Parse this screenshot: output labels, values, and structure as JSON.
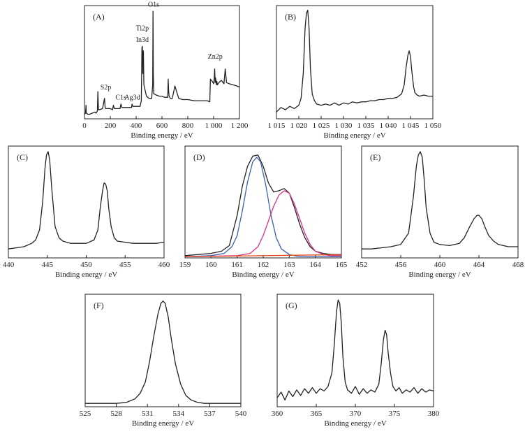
{
  "chart_data": [
    {
      "id": "A",
      "type": "line",
      "panel_label": "(A)",
      "xlabel": "Binding energy / eV",
      "ylabel": "",
      "xlim": [
        0,
        1200
      ],
      "xticks": [
        {
          "v": 0,
          "t": "0"
        },
        {
          "v": 200,
          "t": "200"
        },
        {
          "v": 400,
          "t": "400"
        },
        {
          "v": 600,
          "t": "600"
        },
        {
          "v": 800,
          "t": "800"
        },
        {
          "v": 1000,
          "t": "1 000"
        },
        {
          "v": 1200,
          "t": "1 200"
        }
      ],
      "ylim": [
        0,
        100
      ],
      "series": [
        {
          "x": [
            0,
            8,
            12,
            14,
            16,
            25,
            40,
            60,
            80,
            90,
            100,
            104,
            108,
            115,
            140,
            155,
            160,
            165,
            175,
            200,
            218,
            224,
            232,
            260,
            275,
            282,
            290,
            300,
            320,
            350,
            365,
            368,
            374,
            380,
            400,
            430,
            440,
            445,
            448,
            452,
            456,
            460,
            480,
            500,
            520,
            528,
            531,
            533,
            536,
            540,
            555,
            580,
            600,
            620,
            645,
            648,
            652,
            655,
            665,
            680,
            700,
            730,
            760,
            800,
            850,
            900,
            950,
            970,
            975,
            990,
            1000,
            1005,
            1008,
            1012,
            1015,
            1022,
            1025,
            1030,
            1040,
            1060,
            1080,
            1090,
            1100,
            1120,
            1150,
            1180,
            1200
          ],
          "y": [
            4,
            5,
            12,
            5,
            5,
            4,
            4,
            5,
            6,
            5,
            7,
            24,
            8,
            8,
            9,
            18,
            10,
            9,
            9,
            9,
            8,
            12,
            9,
            9,
            9,
            13,
            10,
            10,
            10,
            10,
            10,
            13,
            11,
            11,
            11,
            11,
            16,
            63,
            64,
            40,
            60,
            30,
            20,
            18,
            18,
            30,
            95,
            40,
            22,
            22,
            21,
            20,
            20,
            19,
            19,
            35,
            24,
            20,
            18,
            18,
            29,
            18,
            17,
            17,
            16,
            16,
            16,
            15,
            35,
            33,
            31,
            36,
            44,
            32,
            36,
            30,
            33,
            30,
            32,
            34,
            31,
            44,
            32,
            31,
            30,
            29,
            28
          ]
        }
      ],
      "annotations": [
        {
          "text": "O1s",
          "x": 535,
          "y": 99
        },
        {
          "text": "Ti2p",
          "x": 448,
          "y": 78
        },
        {
          "text": "In3d",
          "x": 448,
          "y": 68
        },
        {
          "text": "S2p",
          "x": 165,
          "y": 26
        },
        {
          "text": "C1s",
          "x": 282,
          "y": 17
        },
        {
          "text": "Ag3d",
          "x": 370,
          "y": 17
        },
        {
          "text": "Zn2p",
          "x": 1012,
          "y": 53
        }
      ]
    },
    {
      "id": "B",
      "type": "line",
      "panel_label": "(B)",
      "xlabel": "Binding energy / eV",
      "ylabel": "",
      "xlim": [
        1015,
        1050
      ],
      "xticks": [
        {
          "v": 1015,
          "t": "1 015"
        },
        {
          "v": 1020,
          "t": "1 020"
        },
        {
          "v": 1025,
          "t": "1 025"
        },
        {
          "v": 1030,
          "t": "1 030"
        },
        {
          "v": 1035,
          "t": "1 035"
        },
        {
          "v": 1040,
          "t": "1 040"
        },
        {
          "v": 1045,
          "t": "1 045"
        },
        {
          "v": 1050,
          "t": "1 050"
        }
      ],
      "ylim": [
        0,
        100
      ],
      "series": [
        {
          "x": [
            1015,
            1016,
            1017,
            1018,
            1019,
            1020,
            1020.5,
            1021,
            1021.4,
            1021.7,
            1022,
            1022.3,
            1022.6,
            1023,
            1023.5,
            1024,
            1025,
            1026,
            1027,
            1028,
            1029,
            1030,
            1031,
            1032,
            1033,
            1034,
            1035,
            1036,
            1037,
            1038,
            1039,
            1040,
            1041,
            1042,
            1043,
            1043.6,
            1044,
            1044.4,
            1044.7,
            1045,
            1045.3,
            1045.7,
            1046,
            1046.5,
            1047,
            1048,
            1049,
            1050
          ],
          "y": [
            6,
            10,
            8,
            11,
            9,
            12,
            18,
            40,
            80,
            93,
            96,
            80,
            45,
            22,
            16,
            13,
            12,
            13,
            12,
            14,
            12,
            14,
            13,
            15,
            14,
            15,
            15,
            16,
            16,
            17,
            17,
            18,
            18,
            19,
            22,
            30,
            45,
            56,
            60,
            55,
            42,
            28,
            23,
            21,
            20,
            21,
            20,
            20
          ]
        }
      ]
    },
    {
      "id": "C",
      "type": "line",
      "panel_label": "(C)",
      "xlabel": "Binding energy / eV",
      "ylabel": "",
      "xlim": [
        440,
        460
      ],
      "xticks": [
        {
          "v": 440,
          "t": "440"
        },
        {
          "v": 445,
          "t": "445"
        },
        {
          "v": 450,
          "t": "450"
        },
        {
          "v": 455,
          "t": "455"
        },
        {
          "v": 460,
          "t": "460"
        }
      ],
      "ylim": [
        0,
        100
      ],
      "series": [
        {
          "x": [
            440,
            441,
            442,
            443,
            443.5,
            444,
            444.4,
            444.7,
            444.9,
            445.1,
            445.3,
            445.6,
            446,
            446.5,
            447,
            448,
            449,
            450,
            451,
            451.5,
            451.8,
            452.1,
            452.3,
            452.5,
            452.7,
            452.9,
            453.2,
            453.6,
            454,
            455,
            456,
            457,
            458,
            459,
            460
          ],
          "y": [
            8,
            9,
            10,
            13,
            16,
            25,
            50,
            80,
            92,
            95,
            88,
            60,
            28,
            18,
            15,
            13,
            13,
            13,
            16,
            25,
            45,
            60,
            67,
            66,
            60,
            44,
            28,
            18,
            15,
            14,
            13,
            13,
            13,
            13,
            14
          ]
        }
      ]
    },
    {
      "id": "D",
      "type": "line",
      "panel_label": "(D)",
      "xlabel": "Binding energy / eV",
      "ylabel": "",
      "xlim": [
        159,
        165
      ],
      "xticks": [
        {
          "v": 159,
          "t": "159"
        },
        {
          "v": 160,
          "t": "160"
        },
        {
          "v": 161,
          "t": "161"
        },
        {
          "v": 162,
          "t": "162"
        },
        {
          "v": 163,
          "t": "163"
        },
        {
          "v": 164,
          "t": "164"
        },
        {
          "v": 165,
          "t": "165"
        }
      ],
      "ylim": [
        0,
        100
      ],
      "series": [
        {
          "name": "",
          "color": "#222222",
          "x": [
            159,
            159.5,
            160,
            160.4,
            160.7,
            161,
            161.2,
            161.4,
            161.6,
            161.8,
            162,
            162.2,
            162.4,
            162.6,
            162.8,
            163,
            163.2,
            163.4,
            163.6,
            163.8,
            164,
            164.3,
            164.6,
            165
          ],
          "y": [
            2,
            3,
            4,
            6,
            11,
            38,
            64,
            82,
            91,
            92,
            82,
            67,
            59,
            60,
            62,
            58,
            45,
            30,
            18,
            10,
            6,
            4,
            3,
            3
          ]
        },
        {
          "name": "",
          "color": "#3a5fb5",
          "x": [
            159,
            160,
            160.5,
            160.8,
            161,
            161.2,
            161.4,
            161.6,
            161.75,
            161.9,
            162.1,
            162.3,
            162.5,
            162.7,
            163,
            163.3,
            163.6,
            164,
            165
          ],
          "y": [
            1,
            2,
            4,
            10,
            20,
            42,
            68,
            86,
            90,
            86,
            65,
            38,
            18,
            8,
            3,
            1.5,
            1,
            1,
            1
          ]
        },
        {
          "name": "",
          "color": "#d63384",
          "x": [
            159,
            161,
            161.5,
            161.8,
            162,
            162.2,
            162.4,
            162.6,
            162.8,
            163,
            163.2,
            163.4,
            163.6,
            163.8,
            164,
            164.3,
            164.6,
            165
          ],
          "y": [
            1,
            2,
            4,
            10,
            20,
            33,
            46,
            56,
            60,
            58,
            48,
            35,
            22,
            12,
            6,
            3,
            2,
            2
          ]
        },
        {
          "name": "",
          "color": "#e04a1e",
          "x": [
            159,
            160,
            161,
            162,
            163,
            164,
            165
          ],
          "y": [
            1,
            1.3,
            1.6,
            2,
            2.3,
            2.6,
            2.8
          ]
        }
      ]
    },
    {
      "id": "E",
      "type": "line",
      "panel_label": "(E)",
      "xlabel": "Binding energy / eV",
      "ylabel": "",
      "xlim": [
        452,
        468
      ],
      "xticks": [
        {
          "v": 452,
          "t": "452"
        },
        {
          "v": 456,
          "t": "456"
        },
        {
          "v": 460,
          "t": "460"
        },
        {
          "v": 464,
          "t": "464"
        },
        {
          "v": 468,
          "t": "468"
        }
      ],
      "ylim": [
        0,
        100
      ],
      "series": [
        {
          "x": [
            452,
            453,
            454,
            455,
            456,
            456.8,
            457.3,
            457.6,
            457.8,
            458,
            458.2,
            458.4,
            458.6,
            459,
            459.4,
            460,
            461,
            462,
            462.5,
            463,
            463.5,
            463.8,
            464,
            464.3,
            464.6,
            465,
            465.5,
            466,
            467,
            468
          ],
          "y": [
            8,
            8,
            9,
            10,
            12,
            22,
            55,
            82,
            92,
            95,
            90,
            70,
            45,
            22,
            14,
            12,
            11,
            13,
            18,
            27,
            35,
            38,
            38,
            35,
            28,
            20,
            15,
            12,
            10,
            10
          ]
        }
      ]
    },
    {
      "id": "F",
      "type": "line",
      "panel_label": "(F)",
      "xlabel": "Binding energy / eV",
      "ylabel": "",
      "xlim": [
        525,
        540
      ],
      "xticks": [
        {
          "v": 525,
          "t": "525"
        },
        {
          "v": 528,
          "t": "528"
        },
        {
          "v": 531,
          "t": "531"
        },
        {
          "v": 534,
          "t": "534"
        },
        {
          "v": 537,
          "t": "537"
        },
        {
          "v": 540,
          "t": "540"
        }
      ],
      "ylim": [
        0,
        100
      ],
      "series": [
        {
          "x": [
            525,
            526,
            527,
            528,
            529,
            529.8,
            530.3,
            530.8,
            531.2,
            531.6,
            532,
            532.3,
            532.5,
            532.7,
            533,
            533.3,
            533.7,
            534.2,
            534.7,
            535.2,
            535.8,
            536.5,
            537.5,
            538.5,
            540
          ],
          "y": [
            3,
            3,
            3,
            3,
            4,
            7,
            12,
            22,
            40,
            62,
            82,
            92,
            94,
            92,
            80,
            60,
            38,
            20,
            10,
            6,
            4,
            3,
            3,
            3,
            3
          ]
        }
      ]
    },
    {
      "id": "G",
      "type": "line",
      "panel_label": "(G)",
      "xlabel": "Binding energy / eV",
      "ylabel": "",
      "xlim": [
        360,
        380
      ],
      "xticks": [
        {
          "v": 360,
          "t": "360"
        },
        {
          "v": 365,
          "t": "365"
        },
        {
          "v": 370,
          "t": "370"
        },
        {
          "v": 375,
          "t": "375"
        },
        {
          "v": 380,
          "t": "380"
        }
      ],
      "ylim": [
        0,
        100
      ],
      "series": [
        {
          "x": [
            360,
            360.5,
            361,
            361.5,
            362,
            362.5,
            363,
            363.5,
            364,
            364.5,
            365,
            365.5,
            366,
            366.5,
            367,
            367.3,
            367.6,
            367.8,
            368,
            368.2,
            368.4,
            368.7,
            369,
            369.5,
            370,
            370.5,
            371,
            371.5,
            372,
            372.5,
            373,
            373.3,
            373.6,
            373.8,
            374,
            374.2,
            374.5,
            374.8,
            375.2,
            375.6,
            376,
            376.5,
            377,
            377.5,
            378,
            378.5,
            379,
            379.5,
            380
          ],
          "y": [
            8,
            13,
            6,
            14,
            9,
            15,
            10,
            16,
            12,
            17,
            12,
            16,
            14,
            18,
            30,
            55,
            85,
            95,
            92,
            75,
            45,
            22,
            15,
            12,
            18,
            11,
            16,
            12,
            15,
            13,
            20,
            38,
            60,
            68,
            64,
            48,
            30,
            18,
            14,
            17,
            12,
            15,
            13,
            17,
            12,
            16,
            13,
            15,
            14
          ]
        }
      ]
    }
  ]
}
